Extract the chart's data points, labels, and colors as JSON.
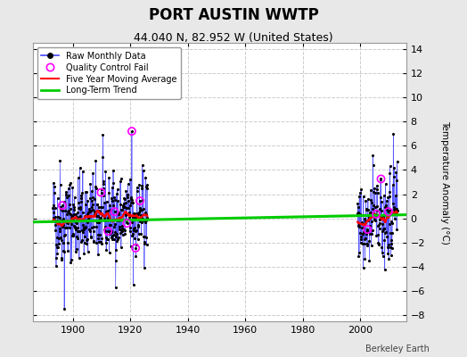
{
  "title": "PORT AUSTIN WWTP",
  "subtitle": "44.040 N, 82.952 W (United States)",
  "ylabel": "Temperature Anomaly (°C)",
  "watermark": "Berkeley Earth",
  "xlim": [
    1886,
    2016
  ],
  "ylim": [
    -8.5,
    14.5
  ],
  "yticks": [
    -8,
    -6,
    -4,
    -2,
    0,
    2,
    4,
    6,
    8,
    10,
    12,
    14
  ],
  "xticks": [
    1900,
    1920,
    1940,
    1960,
    1980,
    2000
  ],
  "background_color": "#e8e8e8",
  "plot_bg_color": "#ffffff",
  "raw_color": "#4444ff",
  "raw_dot_color": "#000000",
  "qc_fail_color": "#ff00ff",
  "moving_avg_color": "#ff0000",
  "trend_color": "#00cc00",
  "early_start": 1893,
  "early_end": 1926,
  "late_start": 1999,
  "late_end": 2013,
  "trend_x": [
    1886,
    2016
  ],
  "trend_y": [
    -0.3,
    0.3
  ],
  "legend_loc": "upper left"
}
